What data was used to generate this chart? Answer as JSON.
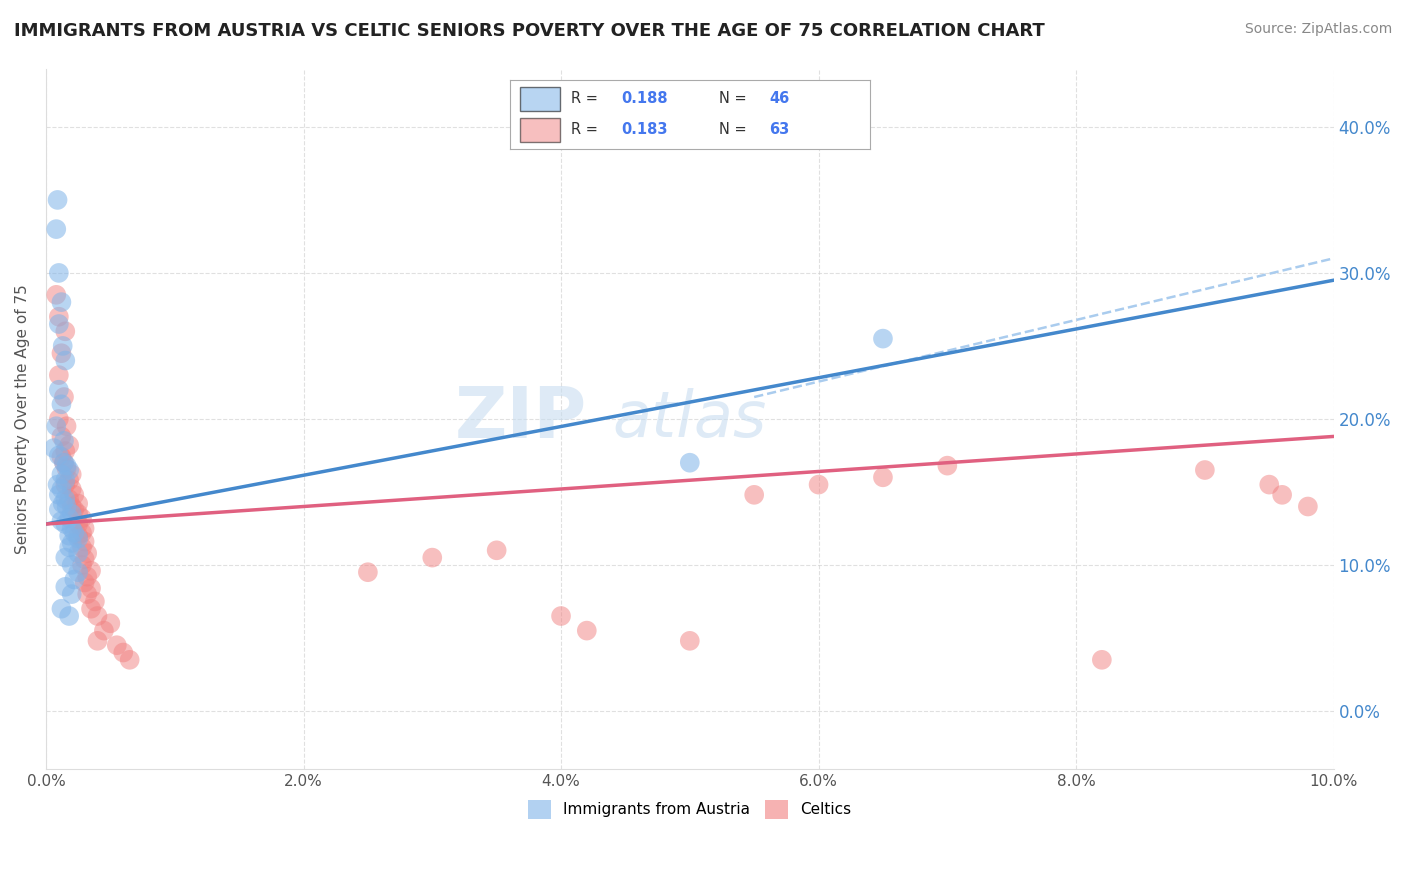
{
  "title": "IMMIGRANTS FROM AUSTRIA VS CELTIC SENIORS POVERTY OVER THE AGE OF 75 CORRELATION CHART",
  "source": "Source: ZipAtlas.com",
  "ylabel": "Seniors Poverty Over the Age of 75",
  "xlim": [
    0.0,
    0.1
  ],
  "ylim": [
    -0.04,
    0.44
  ],
  "xticks": [
    0.0,
    0.02,
    0.04,
    0.06,
    0.08,
    0.1
  ],
  "yticks": [
    0.0,
    0.1,
    0.2,
    0.3,
    0.4
  ],
  "xtick_labels": [
    "0.0%",
    "2.0%",
    "4.0%",
    "6.0%",
    "8.0%",
    "10.0%"
  ],
  "ytick_labels": [
    "0.0%",
    "10.0%",
    "20.0%",
    "30.0%",
    "40.0%"
  ],
  "austria_color": "#7fb3e8",
  "celtic_color": "#f08080",
  "austria_line_color": "#4488cc",
  "celtic_line_color": "#e06080",
  "watermark_color": "#d8e8f5",
  "background_color": "#ffffff",
  "grid_color": "#cccccc",
  "austria_R": "0.188",
  "austria_N": "46",
  "celtic_R": "0.183",
  "celtic_N": "63",
  "austria_scatter": [
    [
      0.0008,
      0.33
    ],
    [
      0.001,
      0.3
    ],
    [
      0.0009,
      0.35
    ],
    [
      0.0012,
      0.28
    ],
    [
      0.001,
      0.265
    ],
    [
      0.0013,
      0.25
    ],
    [
      0.0015,
      0.24
    ],
    [
      0.001,
      0.22
    ],
    [
      0.0012,
      0.21
    ],
    [
      0.0008,
      0.195
    ],
    [
      0.0014,
      0.185
    ],
    [
      0.0006,
      0.18
    ],
    [
      0.001,
      0.175
    ],
    [
      0.0014,
      0.17
    ],
    [
      0.0016,
      0.168
    ],
    [
      0.0018,
      0.165
    ],
    [
      0.0012,
      0.162
    ],
    [
      0.0015,
      0.158
    ],
    [
      0.0009,
      0.155
    ],
    [
      0.0012,
      0.152
    ],
    [
      0.001,
      0.148
    ],
    [
      0.0015,
      0.145
    ],
    [
      0.0013,
      0.142
    ],
    [
      0.0016,
      0.14
    ],
    [
      0.001,
      0.138
    ],
    [
      0.002,
      0.135
    ],
    [
      0.0018,
      0.132
    ],
    [
      0.0012,
      0.13
    ],
    [
      0.0015,
      0.128
    ],
    [
      0.002,
      0.125
    ],
    [
      0.0022,
      0.122
    ],
    [
      0.0018,
      0.12
    ],
    [
      0.0025,
      0.118
    ],
    [
      0.002,
      0.115
    ],
    [
      0.0018,
      0.112
    ],
    [
      0.0025,
      0.108
    ],
    [
      0.0015,
      0.105
    ],
    [
      0.002,
      0.1
    ],
    [
      0.0025,
      0.095
    ],
    [
      0.0022,
      0.09
    ],
    [
      0.0015,
      0.085
    ],
    [
      0.002,
      0.08
    ],
    [
      0.0012,
      0.07
    ],
    [
      0.0018,
      0.065
    ],
    [
      0.05,
      0.17
    ],
    [
      0.065,
      0.255
    ]
  ],
  "celtic_scatter": [
    [
      0.0008,
      0.285
    ],
    [
      0.001,
      0.27
    ],
    [
      0.0015,
      0.26
    ],
    [
      0.0012,
      0.245
    ],
    [
      0.001,
      0.23
    ],
    [
      0.0014,
      0.215
    ],
    [
      0.001,
      0.2
    ],
    [
      0.0016,
      0.195
    ],
    [
      0.0012,
      0.188
    ],
    [
      0.0018,
      0.182
    ],
    [
      0.0015,
      0.178
    ],
    [
      0.0012,
      0.174
    ],
    [
      0.0014,
      0.17
    ],
    [
      0.0016,
      0.166
    ],
    [
      0.002,
      0.162
    ],
    [
      0.0018,
      0.158
    ],
    [
      0.0015,
      0.155
    ],
    [
      0.002,
      0.152
    ],
    [
      0.0022,
      0.148
    ],
    [
      0.0018,
      0.145
    ],
    [
      0.0025,
      0.142
    ],
    [
      0.002,
      0.14
    ],
    [
      0.0022,
      0.138
    ],
    [
      0.0025,
      0.135
    ],
    [
      0.0028,
      0.132
    ],
    [
      0.0025,
      0.128
    ],
    [
      0.003,
      0.125
    ],
    [
      0.0028,
      0.122
    ],
    [
      0.0025,
      0.12
    ],
    [
      0.003,
      0.116
    ],
    [
      0.0028,
      0.112
    ],
    [
      0.0032,
      0.108
    ],
    [
      0.003,
      0.104
    ],
    [
      0.0028,
      0.1
    ],
    [
      0.0035,
      0.096
    ],
    [
      0.0032,
      0.092
    ],
    [
      0.003,
      0.088
    ],
    [
      0.0035,
      0.084
    ],
    [
      0.0032,
      0.08
    ],
    [
      0.0038,
      0.075
    ],
    [
      0.0035,
      0.07
    ],
    [
      0.004,
      0.065
    ],
    [
      0.005,
      0.06
    ],
    [
      0.0045,
      0.055
    ],
    [
      0.004,
      0.048
    ],
    [
      0.0055,
      0.045
    ],
    [
      0.006,
      0.04
    ],
    [
      0.0065,
      0.035
    ],
    [
      0.025,
      0.095
    ],
    [
      0.03,
      0.105
    ],
    [
      0.035,
      0.11
    ],
    [
      0.04,
      0.065
    ],
    [
      0.042,
      0.055
    ],
    [
      0.05,
      0.048
    ],
    [
      0.055,
      0.148
    ],
    [
      0.06,
      0.155
    ],
    [
      0.065,
      0.16
    ],
    [
      0.07,
      0.168
    ],
    [
      0.082,
      0.035
    ],
    [
      0.09,
      0.165
    ],
    [
      0.095,
      0.155
    ],
    [
      0.096,
      0.148
    ],
    [
      0.098,
      0.14
    ]
  ],
  "austria_line": [
    [
      0.0,
      0.128
    ],
    [
      0.1,
      0.295
    ]
  ],
  "celtic_line": [
    [
      0.0,
      0.128
    ],
    [
      0.1,
      0.188
    ]
  ]
}
